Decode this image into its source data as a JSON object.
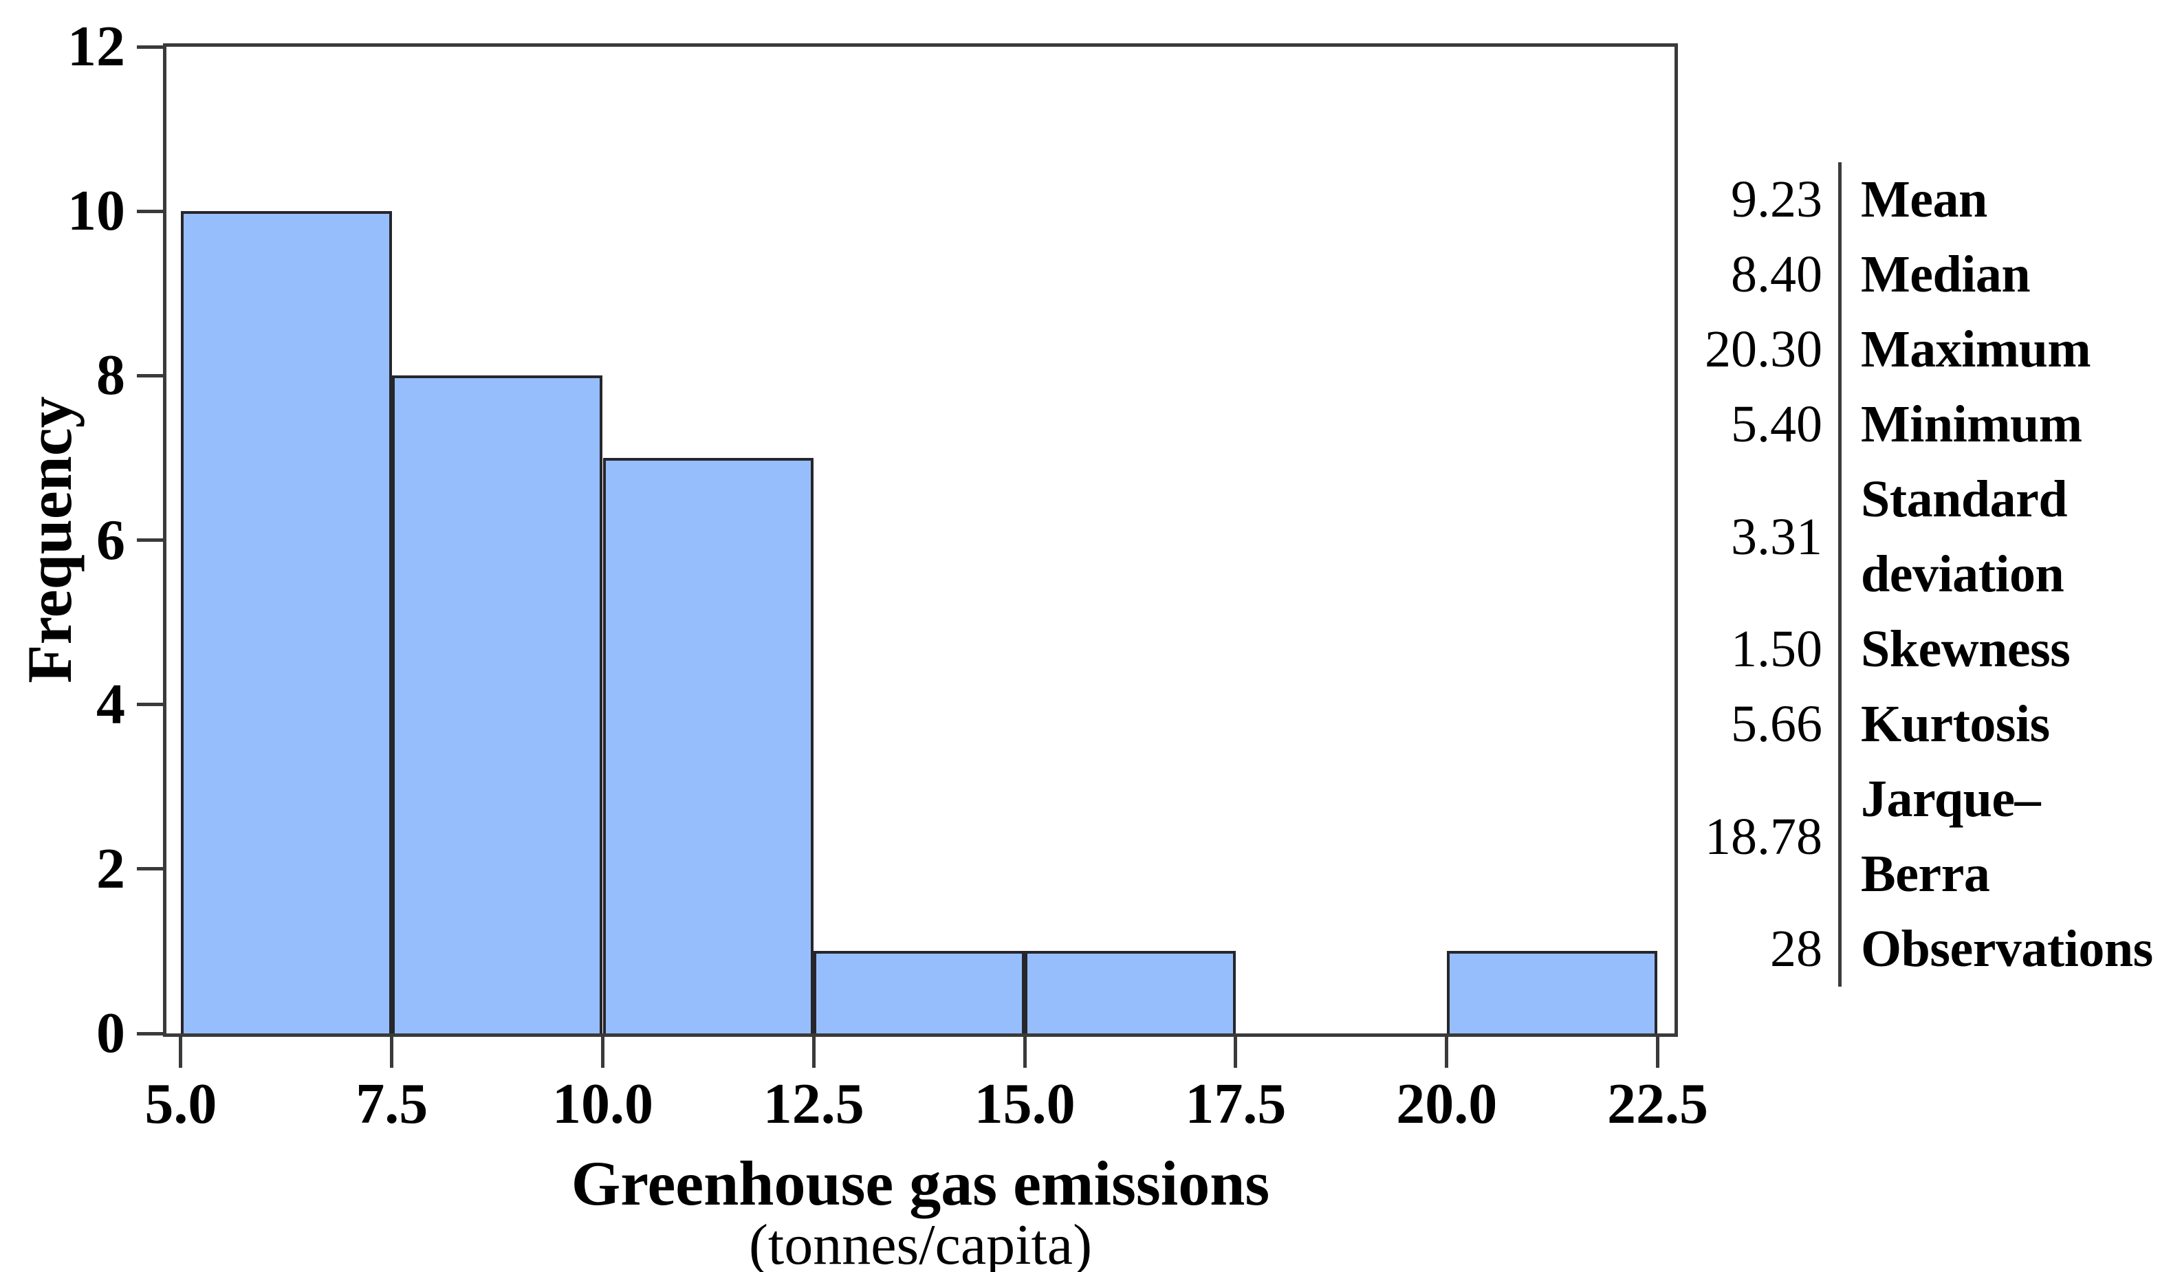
{
  "chart_data": {
    "type": "bar",
    "subtype": "histogram",
    "title": "",
    "xlabel": "Greenhouse gas emissions",
    "xlabel_subtitle": "(tonnes/capita)",
    "ylabel": "Frequency",
    "bins": [
      {
        "start": 5.0,
        "end": 7.5,
        "frequency": 10
      },
      {
        "start": 7.5,
        "end": 10.0,
        "frequency": 8
      },
      {
        "start": 10.0,
        "end": 12.5,
        "frequency": 7
      },
      {
        "start": 12.5,
        "end": 15.0,
        "frequency": 1
      },
      {
        "start": 15.0,
        "end": 17.5,
        "frequency": 1
      },
      {
        "start": 17.5,
        "end": 20.0,
        "frequency": 0
      },
      {
        "start": 20.0,
        "end": 22.5,
        "frequency": 1
      }
    ],
    "x_tick_labels": [
      "5.0",
      "7.5",
      "10.0",
      "12.5",
      "15.0",
      "17.5",
      "20.0",
      "22.5"
    ],
    "x_tick_values": [
      5.0,
      7.5,
      10.0,
      12.5,
      15.0,
      17.5,
      20.0,
      22.5
    ],
    "y_tick_labels": [
      "0",
      "2",
      "4",
      "6",
      "8",
      "10",
      "12"
    ],
    "y_tick_values": [
      0,
      2,
      4,
      6,
      8,
      10,
      12
    ],
    "xlim": [
      4.83,
      22.7
    ],
    "ylim": [
      0,
      12
    ],
    "grid": false,
    "legend": "none",
    "bar_fill_color": "#97befc",
    "bar_edge_color": "#26262b",
    "axis_color": "#3a3a3a"
  },
  "stats_panel": {
    "separator_color": "#3c3c3c",
    "rows": [
      {
        "value": "9.23",
        "label": "Mean"
      },
      {
        "value": "8.40",
        "label": "Median"
      },
      {
        "value": "20.30",
        "label": "Maximum"
      },
      {
        "value": "5.40",
        "label": "Minimum"
      },
      {
        "value": "3.31",
        "label": "Standard\ndeviation"
      },
      {
        "value": "1.50",
        "label": "Skewness"
      },
      {
        "value": "5.66",
        "label": "Kurtosis"
      },
      {
        "value": "18.78",
        "label": "Jarque–Berra"
      },
      {
        "value": "28",
        "label": "Observations"
      }
    ]
  }
}
